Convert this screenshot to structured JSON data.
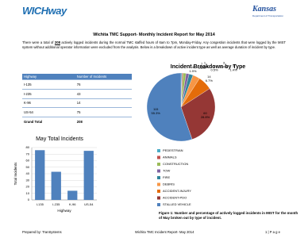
{
  "header": {
    "logo_left": "WICHway",
    "logo_right": "Kansas",
    "logo_right_sub": "Department of Transportation"
  },
  "title": "Wichita TMC Support- Monthly Incident Report for May 2014",
  "intro_start": "There were a total of",
  "intro_count": "208",
  "intro_end": "actively logged incidents during the normal TMC staffed hours of 6am to 7pm, Monday-Friday. Any congestion incidents that were logged by the MIST system without additional operator information were excluded from the analysis. Below is a breakdown of active incident type as well as average duration of incident by type.",
  "table": {
    "header": [
      "Highway",
      "Number of Incidents"
    ],
    "rows": [
      [
        "I-135",
        76
      ],
      [
        "I-235",
        43
      ],
      [
        "K-96",
        14
      ],
      [
        "US-54",
        75
      ]
    ],
    "total": [
      "Grand Total",
      208
    ]
  },
  "chart_data": [
    {
      "type": "pie",
      "title": "Incident Breakdown by Type",
      "categories": [
        "PEDESTRIAN",
        "ANIMALS",
        "CONSTRUCTION",
        "TOW",
        "FIRE",
        "DEBRIS",
        "ACCIDENT-INJURY",
        "ACCIDENT-PDO",
        "STALLED VEHICLE"
      ],
      "values": [
        1,
        1,
        3,
        3,
        4,
        7,
        14,
        60,
        115
      ],
      "percent_labels": [
        "0.5%",
        "0.5%",
        "1.4%",
        "1.4%",
        "1.9%",
        "3.4%",
        "6.7%",
        "28.8%",
        "55.3%"
      ],
      "colors": [
        "#4bacc6",
        "#c0504d",
        "#9bbb59",
        "#8064a2",
        "#31859c",
        "#f79646",
        "#e46c0a",
        "#953735",
        "#4f81bd"
      ]
    },
    {
      "type": "bar",
      "title": "May Total Incidents",
      "x_label": "Highway",
      "y_label": "Total Incidents",
      "categories": [
        "I-135",
        "I-235",
        "K-96",
        "US-54"
      ],
      "values": [
        76,
        43,
        14,
        75
      ],
      "color": "#4f81bd",
      "ylim": [
        0,
        80
      ],
      "yticks": [
        0,
        10,
        20,
        30,
        40,
        50,
        60,
        70,
        80
      ],
      "grid": true
    }
  ],
  "caption": "Figure 1: Number and percentage of actively logged incidents in MIST for the month of May broken out by type of incident.",
  "footer": {
    "left": "Prepared by: TranSystems",
    "center": "Wichita TMC Incident Report- May 2014",
    "right": "1 | P a g e"
  }
}
